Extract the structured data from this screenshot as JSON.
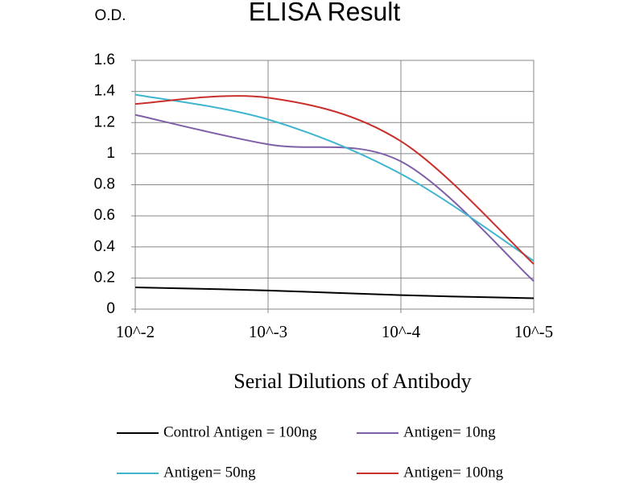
{
  "chart_data": {
    "type": "line",
    "title": "ELISA Result",
    "y_label": "O.D.",
    "x_label": "Serial Dilutions of Antibody",
    "categories": [
      "10^-2",
      "10^-3",
      "10^-4",
      "10^-5"
    ],
    "series": [
      {
        "name": "Control Antigen = 100ng",
        "color": "#000000",
        "values": [
          0.14,
          0.12,
          0.09,
          0.07
        ]
      },
      {
        "name": "Antigen= 10ng",
        "color": "#7f5fa8",
        "values": [
          1.25,
          1.06,
          0.95,
          0.18
        ]
      },
      {
        "name": "Antigen= 50ng",
        "color": "#3fb5d0",
        "values": [
          1.38,
          1.22,
          0.87,
          0.31
        ]
      },
      {
        "name": "Antigen= 100ng",
        "color": "#c9302c",
        "values": [
          1.32,
          1.36,
          1.08,
          0.29
        ]
      }
    ],
    "ylim": [
      0,
      1.6
    ],
    "yticks": [
      0,
      0.2,
      0.4,
      0.6,
      0.8,
      1,
      1.2,
      1.4,
      1.6
    ],
    "grid": true,
    "smooth": true
  }
}
